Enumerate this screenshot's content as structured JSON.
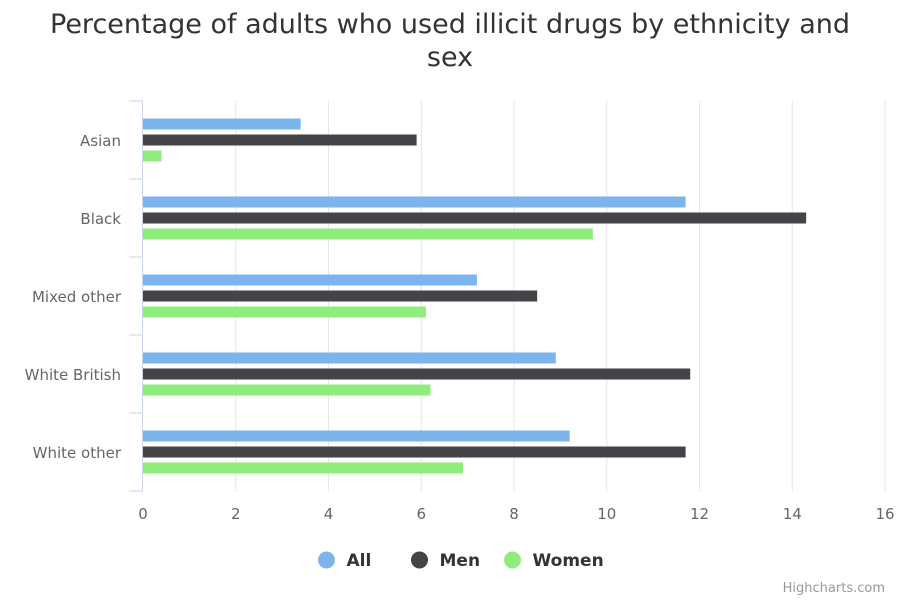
{
  "chart_data": {
    "type": "bar",
    "orientation": "horizontal",
    "title_lines": [
      "Percentage of adults who used illicit drugs by ethnicity and",
      "sex"
    ],
    "categories": [
      "Asian",
      "Black",
      "Mixed other",
      "White British",
      "White other"
    ],
    "series": [
      {
        "name": "All",
        "color": "#7cb5ec",
        "values": [
          3.4,
          11.7,
          7.2,
          8.9,
          9.2
        ]
      },
      {
        "name": "Men",
        "color": "#434348",
        "values": [
          5.9,
          14.3,
          8.5,
          11.8,
          11.7
        ]
      },
      {
        "name": "Women",
        "color": "#90ed7d",
        "values": [
          0.4,
          9.7,
          6.1,
          6.2,
          6.9
        ]
      }
    ],
    "xlim": [
      0,
      16
    ],
    "ticks": [
      0,
      2,
      4,
      6,
      8,
      10,
      12,
      14,
      16
    ],
    "grid": true,
    "legend_position": "bottom-center"
  },
  "credits": "Highcharts.com"
}
